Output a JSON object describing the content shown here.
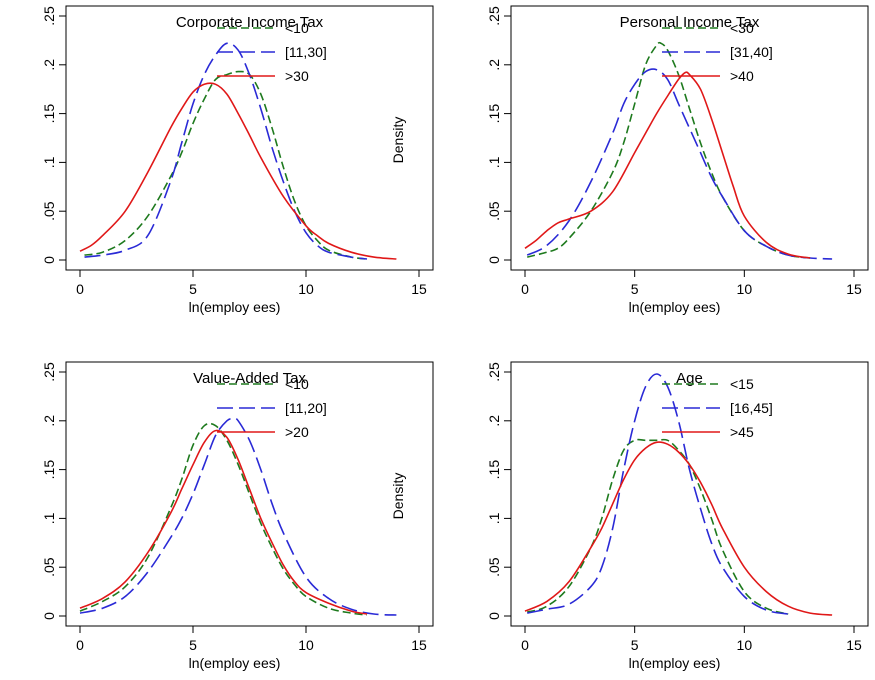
{
  "chart_data": [
    {
      "type": "line",
      "title": "Corporate Income Tax",
      "xlabel": "ln(employ ees)",
      "ylabel": "",
      "xlim": [
        0,
        15
      ],
      "ylim": [
        0,
        0.25
      ],
      "xticks": [
        "0",
        "5",
        "10",
        "15"
      ],
      "yticks": [
        "0",
        ".05",
        ".1",
        ".15",
        ".2",
        ".25"
      ],
      "legend_position": "top-right",
      "series": [
        {
          "name": "<10",
          "color": "#1e7a1e",
          "dash": "8,4",
          "x": [
            0.2,
            1,
            2,
            3,
            4,
            4.5,
            5,
            5.5,
            6,
            6.5,
            7,
            7.5,
            8,
            8.5,
            9,
            9.5,
            10,
            10.5,
            11,
            12,
            12.7
          ],
          "y": [
            0.005,
            0.008,
            0.02,
            0.045,
            0.085,
            0.11,
            0.14,
            0.165,
            0.185,
            0.19,
            0.193,
            0.19,
            0.17,
            0.135,
            0.095,
            0.06,
            0.035,
            0.02,
            0.01,
            0.003,
            0.001
          ]
        },
        {
          "name": "[11,30]",
          "color": "#2a2ad6",
          "dash": "16,6",
          "x": [
            0.2,
            1,
            2,
            3,
            4,
            4.5,
            5,
            5.5,
            6,
            6.5,
            7,
            7.5,
            8,
            8.5,
            9,
            9.5,
            10,
            10.5,
            11,
            12,
            12.7
          ],
          "y": [
            0.003,
            0.005,
            0.01,
            0.025,
            0.08,
            0.12,
            0.16,
            0.19,
            0.21,
            0.222,
            0.215,
            0.19,
            0.155,
            0.115,
            0.08,
            0.05,
            0.028,
            0.015,
            0.008,
            0.003,
            0.001
          ]
        },
        {
          "name": ">30",
          "color": "#e01818",
          "dash": "",
          "x": [
            0,
            0.5,
            1,
            2,
            3,
            4,
            4.5,
            5,
            5.5,
            6,
            6.5,
            7,
            7.5,
            8,
            9,
            10,
            10.5,
            11,
            12,
            13,
            14
          ],
          "y": [
            0.009,
            0.015,
            0.025,
            0.05,
            0.09,
            0.135,
            0.155,
            0.172,
            0.18,
            0.18,
            0.17,
            0.15,
            0.128,
            0.105,
            0.065,
            0.035,
            0.025,
            0.017,
            0.008,
            0.003,
            0.001
          ]
        }
      ]
    },
    {
      "type": "line",
      "title": "Personal Income Tax",
      "xlabel": "ln(employ ees)",
      "ylabel": "Density",
      "xlim": [
        0,
        15
      ],
      "ylim": [
        0,
        0.25
      ],
      "xticks": [
        "0",
        "5",
        "10",
        "15"
      ],
      "yticks": [
        "0",
        ".05",
        ".1",
        ".15",
        ".2",
        ".25"
      ],
      "legend_position": "top-right",
      "series": [
        {
          "name": "<30",
          "color": "#1e7a1e",
          "dash": "8,4",
          "x": [
            0.1,
            1,
            1.5,
            2,
            3,
            4,
            4.5,
            5,
            5.5,
            6,
            6.2,
            6.5,
            7,
            7.5,
            8,
            8.5,
            9,
            10,
            11,
            12,
            13
          ],
          "y": [
            0.003,
            0.008,
            0.012,
            0.022,
            0.05,
            0.09,
            0.12,
            0.16,
            0.2,
            0.22,
            0.222,
            0.215,
            0.19,
            0.155,
            0.12,
            0.09,
            0.065,
            0.03,
            0.014,
            0.005,
            0.002
          ]
        },
        {
          "name": "[31,40]",
          "color": "#2a2ad6",
          "dash": "16,6",
          "x": [
            0.1,
            1,
            2,
            3,
            4,
            4.5,
            5,
            5.5,
            6,
            6.5,
            7,
            7.5,
            8,
            8.5,
            9,
            10,
            11,
            12,
            13,
            14
          ],
          "y": [
            0.005,
            0.015,
            0.04,
            0.08,
            0.13,
            0.16,
            0.18,
            0.193,
            0.195,
            0.185,
            0.16,
            0.135,
            0.11,
            0.085,
            0.065,
            0.03,
            0.014,
            0.005,
            0.002,
            0.001
          ]
        },
        {
          "name": ">40",
          "color": "#e01818",
          "dash": "",
          "x": [
            0,
            0.5,
            1,
            1.5,
            2,
            3,
            4,
            5,
            5.5,
            6,
            6.5,
            7,
            7.3,
            7.5,
            8,
            8.5,
            9,
            9.5,
            10,
            11,
            12,
            13
          ],
          "y": [
            0.012,
            0.02,
            0.03,
            0.038,
            0.042,
            0.05,
            0.07,
            0.11,
            0.13,
            0.15,
            0.168,
            0.185,
            0.192,
            0.19,
            0.175,
            0.145,
            0.11,
            0.075,
            0.045,
            0.018,
            0.006,
            0.002
          ]
        }
      ]
    },
    {
      "type": "line",
      "title": "Value-Added Tax",
      "xlabel": "ln(employ ees)",
      "ylabel": "",
      "xlim": [
        0,
        15
      ],
      "ylim": [
        0,
        0.25
      ],
      "xticks": [
        "0",
        "5",
        "10",
        "15"
      ],
      "yticks": [
        "0",
        ".05",
        ".1",
        ".15",
        ".2",
        ".25"
      ],
      "legend_position": "top-right",
      "series": [
        {
          "name": "<10",
          "color": "#1e7a1e",
          "dash": "8,4",
          "x": [
            0,
            1,
            2,
            3,
            4,
            4.5,
            5,
            5.5,
            6,
            6.5,
            7,
            7.5,
            8,
            8.5,
            9,
            9.5,
            10,
            11,
            12,
            12.7
          ],
          "y": [
            0.005,
            0.015,
            0.03,
            0.06,
            0.11,
            0.14,
            0.175,
            0.195,
            0.195,
            0.18,
            0.155,
            0.125,
            0.095,
            0.07,
            0.048,
            0.032,
            0.02,
            0.008,
            0.003,
            0.001
          ]
        },
        {
          "name": "[11,20]",
          "color": "#2a2ad6",
          "dash": "16,6",
          "x": [
            0,
            1,
            2,
            3,
            4,
            4.5,
            5,
            5.5,
            6,
            6.5,
            6.8,
            7,
            7.5,
            8,
            8.5,
            9,
            10,
            11,
            12,
            13,
            14
          ],
          "y": [
            0.003,
            0.008,
            0.02,
            0.045,
            0.08,
            0.1,
            0.125,
            0.155,
            0.185,
            0.2,
            0.202,
            0.2,
            0.18,
            0.15,
            0.115,
            0.085,
            0.04,
            0.018,
            0.007,
            0.002,
            0.001
          ]
        },
        {
          "name": ">20",
          "color": "#e01818",
          "dash": "",
          "x": [
            0,
            1,
            2,
            3,
            4,
            4.5,
            5,
            5.5,
            6,
            6.5,
            7,
            7.5,
            8,
            8.5,
            9,
            9.5,
            10,
            11,
            12,
            12.7
          ],
          "y": [
            0.008,
            0.018,
            0.035,
            0.065,
            0.105,
            0.13,
            0.155,
            0.178,
            0.19,
            0.183,
            0.16,
            0.13,
            0.1,
            0.075,
            0.052,
            0.035,
            0.024,
            0.013,
            0.005,
            0.002
          ]
        }
      ]
    },
    {
      "type": "line",
      "title": "Age",
      "xlabel": "ln(employ ees)",
      "ylabel": "Density",
      "xlim": [
        0,
        15
      ],
      "ylim": [
        0,
        0.25
      ],
      "xticks": [
        "0",
        "5",
        "10",
        "15"
      ],
      "yticks": [
        "0",
        ".05",
        ".1",
        ".15",
        ".2",
        ".25"
      ],
      "legend_position": "top-right",
      "series": [
        {
          "name": "<15",
          "color": "#1e7a1e",
          "dash": "8,4",
          "x": [
            0.1,
            1,
            2,
            3,
            3.5,
            4,
            4.5,
            5,
            5.5,
            6,
            6.5,
            7,
            7.5,
            8,
            8.5,
            9,
            10,
            11,
            12
          ],
          "y": [
            0.004,
            0.01,
            0.03,
            0.07,
            0.1,
            0.14,
            0.17,
            0.18,
            0.18,
            0.18,
            0.18,
            0.17,
            0.155,
            0.13,
            0.1,
            0.068,
            0.025,
            0.008,
            0.002
          ]
        },
        {
          "name": "[16,45]",
          "color": "#2a2ad6",
          "dash": "16,6",
          "x": [
            0.1,
            1,
            2,
            3,
            3.5,
            4,
            4.5,
            5,
            5.5,
            6,
            6.5,
            7,
            7.5,
            8,
            8.5,
            9,
            10,
            11,
            12
          ],
          "y": [
            0.003,
            0.007,
            0.012,
            0.03,
            0.05,
            0.09,
            0.15,
            0.2,
            0.235,
            0.248,
            0.235,
            0.2,
            0.15,
            0.11,
            0.075,
            0.05,
            0.02,
            0.006,
            0.002
          ]
        },
        {
          "name": ">45",
          "color": "#e01818",
          "dash": "",
          "x": [
            0,
            1,
            2,
            3,
            3.5,
            4,
            4.5,
            5,
            5.5,
            6,
            6.5,
            7,
            7.5,
            8,
            8.5,
            9,
            10,
            11,
            12,
            13,
            14
          ],
          "y": [
            0.005,
            0.015,
            0.035,
            0.07,
            0.09,
            0.115,
            0.14,
            0.16,
            0.172,
            0.178,
            0.176,
            0.168,
            0.155,
            0.137,
            0.115,
            0.09,
            0.05,
            0.025,
            0.01,
            0.003,
            0.001
          ]
        }
      ]
    }
  ]
}
